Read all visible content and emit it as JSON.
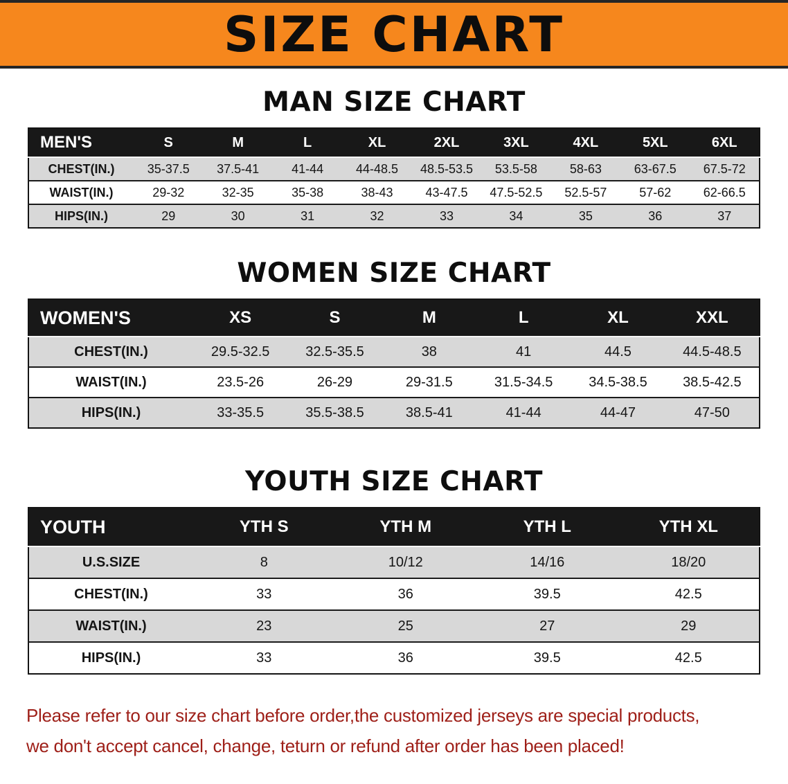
{
  "banner": {
    "title": "SIZE CHART",
    "bg_color": "#f6871d",
    "text_color": "#0d0d0d"
  },
  "chart_data": [
    {
      "type": "table",
      "title": "MAN SIZE CHART",
      "columns": [
        "MEN'S",
        "S",
        "M",
        "L",
        "XL",
        "2XL",
        "3XL",
        "4XL",
        "5XL",
        "6XL"
      ],
      "rows": [
        {
          "label": "CHEST(IN.)",
          "values": [
            "35-37.5",
            "37.5-41",
            "41-44",
            "44-48.5",
            "48.5-53.5",
            "53.5-58",
            "58-63",
            "63-67.5",
            "67.5-72"
          ]
        },
        {
          "label": "WAIST(IN.)",
          "values": [
            "29-32",
            "32-35",
            "35-38",
            "38-43",
            "43-47.5",
            "47.5-52.5",
            "52.5-57",
            "57-62",
            "62-66.5"
          ]
        },
        {
          "label": "HIPS(IN.)",
          "values": [
            "29",
            "30",
            "31",
            "32",
            "33",
            "34",
            "35",
            "36",
            "37"
          ]
        }
      ]
    },
    {
      "type": "table",
      "title": "WOMEN SIZE CHART",
      "columns": [
        "WOMEN'S",
        "XS",
        "S",
        "M",
        "L",
        "XL",
        "XXL"
      ],
      "rows": [
        {
          "label": "CHEST(IN.)",
          "values": [
            "29.5-32.5",
            "32.5-35.5",
            "38",
            "41",
            "44.5",
            "44.5-48.5"
          ]
        },
        {
          "label": "WAIST(IN.)",
          "values": [
            "23.5-26",
            "26-29",
            "29-31.5",
            "31.5-34.5",
            "34.5-38.5",
            "38.5-42.5"
          ]
        },
        {
          "label": "HIPS(IN.)",
          "values": [
            "33-35.5",
            "35.5-38.5",
            "38.5-41",
            "41-44",
            "44-47",
            "47-50"
          ]
        }
      ]
    },
    {
      "type": "table",
      "title": "YOUTH SIZE CHART",
      "columns": [
        "YOUTH",
        "YTH S",
        "YTH M",
        "YTH L",
        "YTH XL"
      ],
      "rows": [
        {
          "label": "U.S.SIZE",
          "values": [
            "8",
            "10/12",
            "14/16",
            "18/20"
          ]
        },
        {
          "label": "CHEST(IN.)",
          "values": [
            "33",
            "36",
            "39.5",
            "42.5"
          ]
        },
        {
          "label": "WAIST(IN.)",
          "values": [
            "23",
            "25",
            "27",
            "29"
          ]
        },
        {
          "label": "HIPS(IN.)",
          "values": [
            "33",
            "36",
            "39.5",
            "42.5"
          ]
        }
      ]
    }
  ],
  "footer": {
    "color": "#9e1f18",
    "lines": [
      "Please refer to our size chart before order,the customized jerseys are special products,",
      "we don't accept cancel, change, teturn or refund after order has been placed!"
    ]
  }
}
